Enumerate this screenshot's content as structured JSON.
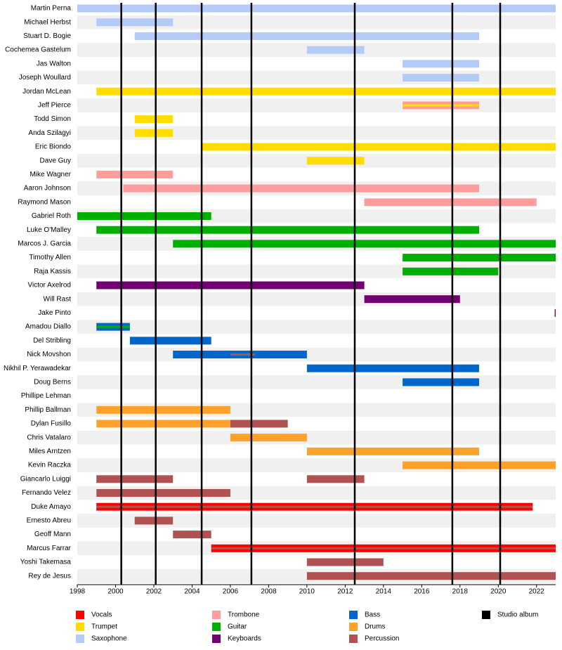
{
  "chart_data": {
    "type": "timeline",
    "categories": [
      "Martin Perna",
      "Michael Herbst",
      "Stuart D. Bogie",
      "Cochemea Gastelum",
      "Jas Walton",
      "Joseph Woullard",
      "Jordan McLean",
      "Jeff Pierce",
      "Todd Simon",
      "Anda Szilagyi",
      "Eric Biondo",
      "Dave Guy",
      "Mike Wagner",
      "Aaron Johnson",
      "Raymond Mason",
      "Gabriel Roth",
      "Luke O'Malley",
      "Marcos J. Garcia",
      "Timothy Allen",
      "Raja Kassis",
      "Victor Axelrod",
      "Will Rast",
      "Jake Pinto",
      "Amadou Diallo",
      "Del Stribling",
      "Nick Movshon",
      "Nikhil P. Yerawadekar",
      "Doug Berns",
      "Phillipe Lehman",
      "Phillip Ballman",
      "Dylan Fusillo",
      "Chris Vatalaro",
      "Miles Arntzen",
      "Kevin Raczka",
      "Giancarlo Luiggi",
      "Fernando Velez",
      "Duke Amayo",
      "Ernesto Abreu",
      "Geoff Mann",
      "Marcus Farrar",
      "Yoshi Takemasa",
      "Rey de Jesus"
    ],
    "xlim": [
      1998,
      2023
    ],
    "xticks": [
      1998,
      2000,
      2002,
      2004,
      2006,
      2008,
      2010,
      2012,
      2014,
      2016,
      2018,
      2020,
      2022
    ],
    "series": [
      {
        "name": "Vocals",
        "color": "#ff0000",
        "spans": [
          null,
          null,
          null,
          null,
          null,
          null,
          null,
          null,
          null,
          null,
          null,
          null,
          null,
          null,
          null,
          null,
          null,
          null,
          null,
          null,
          null,
          null,
          null,
          null,
          null,
          null,
          null,
          null,
          null,
          null,
          null,
          null,
          null,
          null,
          null,
          null,
          [
            [
              1999,
              2021.8
            ]
          ],
          null,
          null,
          [
            [
              2005,
              2023
            ]
          ],
          null,
          null
        ]
      },
      {
        "name": "Trumpet",
        "color": "#ffdd00",
        "spans": [
          null,
          null,
          null,
          null,
          null,
          null,
          [
            [
              1999,
              2023
            ]
          ],
          null,
          [
            [
              2001,
              2003
            ]
          ],
          [
            [
              2001,
              2003
            ]
          ],
          [
            [
              2004.5,
              2023
            ]
          ],
          [
            [
              2010,
              2013
            ]
          ],
          null,
          null,
          null,
          null,
          null,
          null,
          null,
          null,
          null,
          null,
          null,
          null,
          null,
          null,
          null,
          null,
          null,
          null,
          null,
          null,
          null,
          null,
          null,
          null,
          null,
          null,
          null,
          null,
          null,
          null
        ],
        "overlay_spans": [
          null,
          null,
          null,
          null,
          null,
          null,
          null,
          [
            [
              2015,
              2019
            ]
          ],
          null,
          null,
          null,
          null,
          null,
          null,
          null,
          null,
          null,
          null,
          null,
          null,
          null,
          null,
          null,
          null,
          null,
          null,
          null,
          null,
          null,
          null,
          null,
          null,
          null,
          null,
          null,
          null,
          null,
          null,
          null,
          null,
          null,
          null
        ]
      },
      {
        "name": "Saxophone",
        "color": "#b4cbf7",
        "spans": [
          [
            [
              1998,
              2023
            ]
          ],
          [
            [
              1999,
              2003
            ]
          ],
          [
            [
              2001,
              2019
            ]
          ],
          [
            [
              2010,
              2013
            ]
          ],
          [
            [
              2015,
              2019
            ]
          ],
          [
            [
              2015,
              2019
            ]
          ],
          null,
          null,
          null,
          null,
          null,
          null,
          null,
          null,
          null,
          null,
          null,
          null,
          null,
          null,
          null,
          null,
          null,
          null,
          null,
          null,
          null,
          null,
          null,
          null,
          null,
          null,
          null,
          null,
          null,
          null,
          null,
          null,
          null,
          null,
          null,
          null
        ]
      },
      {
        "name": "Trombone",
        "color": "#ff9d9d",
        "spans": [
          null,
          null,
          null,
          null,
          null,
          null,
          null,
          [
            [
              2015,
              2019
            ]
          ],
          null,
          null,
          null,
          null,
          [
            [
              1999,
              2003
            ]
          ],
          [
            [
              2000.4,
              2019
            ]
          ],
          [
            [
              2013,
              2022
            ]
          ],
          null,
          null,
          null,
          null,
          null,
          null,
          null,
          null,
          null,
          null,
          null,
          null,
          null,
          null,
          null,
          null,
          null,
          null,
          null,
          null,
          null,
          null,
          null,
          null,
          null,
          null,
          null
        ]
      },
      {
        "name": "Guitar",
        "color": "#00b000",
        "spans": [
          null,
          null,
          null,
          null,
          null,
          null,
          null,
          null,
          null,
          null,
          null,
          null,
          null,
          null,
          null,
          [
            [
              1998,
              2005
            ]
          ],
          [
            [
              1999,
              2019
            ]
          ],
          [
            [
              2003,
              2023
            ]
          ],
          [
            [
              2015,
              2023
            ]
          ],
          [
            [
              2015,
              2020
            ]
          ],
          null,
          null,
          null,
          null,
          null,
          null,
          null,
          null,
          null,
          null,
          null,
          null,
          null,
          null,
          null,
          null,
          null,
          null,
          null,
          null,
          null,
          null
        ],
        "overlay_spans": [
          null,
          null,
          null,
          null,
          null,
          null,
          null,
          null,
          null,
          null,
          null,
          null,
          null,
          null,
          null,
          null,
          null,
          null,
          null,
          null,
          null,
          null,
          null,
          [
            [
              1999,
              2000.75
            ]
          ],
          null,
          null,
          null,
          null,
          null,
          null,
          null,
          null,
          null,
          null,
          null,
          null,
          null,
          null,
          null,
          null,
          null,
          null
        ]
      },
      {
        "name": "Keyboards",
        "color": "#730073",
        "spans": [
          null,
          null,
          null,
          null,
          null,
          null,
          null,
          null,
          null,
          null,
          null,
          null,
          null,
          null,
          null,
          null,
          null,
          null,
          null,
          null,
          [
            [
              1999,
              2013
            ]
          ],
          [
            [
              2013,
              2018
            ]
          ],
          [
            [
              2022.95,
              2023
            ]
          ],
          null,
          null,
          null,
          null,
          null,
          null,
          null,
          null,
          null,
          null,
          null,
          null,
          null,
          null,
          null,
          null,
          null,
          null,
          null
        ]
      },
      {
        "name": "Bass",
        "color": "#0066cc",
        "spans": [
          null,
          null,
          null,
          null,
          null,
          null,
          null,
          null,
          null,
          null,
          null,
          null,
          null,
          null,
          null,
          null,
          null,
          null,
          null,
          null,
          null,
          null,
          null,
          [
            [
              1999,
              2000.75
            ]
          ],
          [
            [
              2000.75,
              2005
            ]
          ],
          [
            [
              2003,
              2010
            ]
          ],
          [
            [
              2010,
              2019
            ]
          ],
          [
            [
              2015,
              2019
            ]
          ],
          null,
          null,
          null,
          null,
          null,
          null,
          null,
          null,
          null,
          null,
          null,
          null,
          null,
          null
        ]
      },
      {
        "name": "Drums",
        "color": "#ffa12a",
        "spans": [
          null,
          null,
          null,
          null,
          null,
          null,
          null,
          null,
          null,
          null,
          null,
          null,
          null,
          null,
          null,
          null,
          null,
          null,
          null,
          null,
          null,
          null,
          null,
          null,
          null,
          null,
          null,
          null,
          null,
          [
            [
              1999,
              2006
            ]
          ],
          [
            [
              1999,
              2006
            ]
          ],
          [
            [
              2006,
              2010
            ]
          ],
          [
            [
              2010,
              2019
            ]
          ],
          [
            [
              2015,
              2023
            ]
          ],
          null,
          null,
          null,
          null,
          null,
          null,
          null,
          null
        ]
      },
      {
        "name": "Percussion",
        "color": "#b05252",
        "spans": [
          null,
          null,
          null,
          null,
          null,
          null,
          null,
          null,
          null,
          null,
          null,
          null,
          null,
          null,
          null,
          null,
          null,
          null,
          null,
          null,
          null,
          null,
          null,
          null,
          null,
          null,
          null,
          null,
          null,
          null,
          [
            [
              2006,
              2009
            ]
          ],
          null,
          null,
          null,
          [
            [
              1999,
              2003
            ],
            [
              2010,
              2013
            ]
          ],
          [
            [
              1999,
              2006
            ]
          ],
          null,
          [
            [
              2001,
              2003
            ]
          ],
          [
            [
              2003,
              2005
            ]
          ],
          null,
          [
            [
              2010,
              2014
            ]
          ],
          [
            [
              2010,
              2023
            ]
          ]
        ],
        "overlay_spans": [
          null,
          null,
          null,
          null,
          null,
          null,
          null,
          null,
          null,
          null,
          null,
          null,
          null,
          null,
          null,
          null,
          null,
          null,
          null,
          null,
          null,
          null,
          null,
          null,
          null,
          [
            [
              2006,
              2007.3
            ]
          ],
          null,
          null,
          null,
          null,
          null,
          null,
          null,
          null,
          null,
          null,
          [
            [
              1999,
              2021.8
            ]
          ],
          null,
          null,
          [
            [
              2005,
              2023
            ]
          ],
          null,
          null
        ]
      },
      {
        "name": "Studio album",
        "color": "#000000",
        "x": [
          2000.3,
          2002.1,
          2004.5,
          2007.1,
          2012.5,
          2017.6,
          2020.1
        ]
      }
    ]
  }
}
